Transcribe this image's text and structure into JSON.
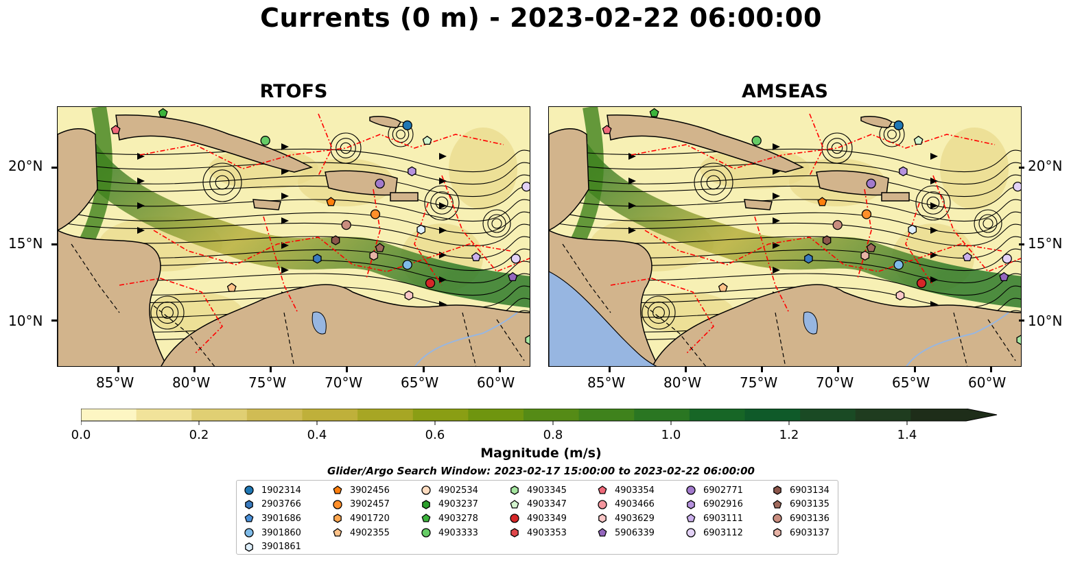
{
  "title": "Currents (0 m) - 2023-02-22 06:00:00",
  "panels": [
    {
      "name": "RTOFS"
    },
    {
      "name": "AMSEAS"
    }
  ],
  "map": {
    "lon_range": [
      -89,
      -58
    ],
    "lat_range": [
      7,
      24
    ],
    "lat_ticks": [
      "20°N",
      "15°N",
      "10°N"
    ],
    "lon_ticks": [
      "85°W",
      "80°W",
      "75°W",
      "70°W",
      "65°W",
      "60°W"
    ],
    "colors": {
      "land": "#d2b48c",
      "ocean_low": "#f7f0b4",
      "ocean_mid": "#b8b040",
      "ocean_high": "#2f7a2a",
      "lake": "#97b6e1",
      "eez": "#ff0000"
    }
  },
  "colorbar": {
    "label": "Magnitude (m/s)",
    "range": [
      0.0,
      1.5
    ],
    "extend": "max",
    "ticks": [
      "0.0",
      "0.2",
      "0.4",
      "0.6",
      "0.8",
      "1.0",
      "1.2",
      "1.4"
    ],
    "colors": [
      "#fdf6c3",
      "#f1e39a",
      "#e0cf73",
      "#d0bc54",
      "#bfb03a",
      "#a7a624",
      "#8a9e14",
      "#6f950f",
      "#558b16",
      "#3f821c",
      "#2a7622",
      "#176626",
      "#0f5a29",
      "#1a4a24",
      "#1f3c1f",
      "#1e2d19"
    ]
  },
  "search_window": "Glider/Argo Search Window: 2023-02-17 15:00:00 to 2023-02-22 06:00:00",
  "legend": [
    {
      "id": "1902314",
      "marker": "circle",
      "color": "#1f77b4"
    },
    {
      "id": "2903766",
      "marker": "hexagon",
      "color": "#3a7bbf"
    },
    {
      "id": "3901686",
      "marker": "pentagon",
      "color": "#4a90d9"
    },
    {
      "id": "3901860",
      "marker": "circle",
      "color": "#7fbbe8"
    },
    {
      "id": "3901861",
      "marker": "hexagon",
      "color": "#ddeefa"
    },
    {
      "id": "3902456",
      "marker": "pentagon",
      "color": "#ff7f0e"
    },
    {
      "id": "3902457",
      "marker": "circle",
      "color": "#ff8f2a"
    },
    {
      "id": "4901720",
      "marker": "hexagon",
      "color": "#ffa750"
    },
    {
      "id": "4902355",
      "marker": "pentagon",
      "color": "#ffc38a"
    },
    {
      "id": "4902534",
      "marker": "circle",
      "color": "#ffdcc0"
    },
    {
      "id": "4903237",
      "marker": "hexagon",
      "color": "#2ca02c"
    },
    {
      "id": "4903278",
      "marker": "pentagon",
      "color": "#3cb43c"
    },
    {
      "id": "4903333",
      "marker": "circle",
      "color": "#66cc66"
    },
    {
      "id": "4903345",
      "marker": "hexagon",
      "color": "#a5e6a0"
    },
    {
      "id": "4903347",
      "marker": "pentagon",
      "color": "#d4f5cf"
    },
    {
      "id": "4903349",
      "marker": "circle",
      "color": "#d62728"
    },
    {
      "id": "4903353",
      "marker": "hexagon",
      "color": "#e0474a"
    },
    {
      "id": "4903354",
      "marker": "pentagon",
      "color": "#f06a7a"
    },
    {
      "id": "4903466",
      "marker": "circle",
      "color": "#f4969e"
    },
    {
      "id": "4903629",
      "marker": "hexagon",
      "color": "#fbc8c8"
    },
    {
      "id": "5906339",
      "marker": "pentagon",
      "color": "#9467bd"
    },
    {
      "id": "6902771",
      "marker": "circle",
      "color": "#a27acc"
    },
    {
      "id": "6902916",
      "marker": "hexagon",
      "color": "#b692de"
    },
    {
      "id": "6903111",
      "marker": "pentagon",
      "color": "#cbb0ec"
    },
    {
      "id": "6903112",
      "marker": "circle",
      "color": "#e3d2f6"
    },
    {
      "id": "6903134",
      "marker": "hexagon",
      "color": "#8c564b"
    },
    {
      "id": "6903135",
      "marker": "pentagon",
      "color": "#a06a5c"
    },
    {
      "id": "6903136",
      "marker": "circle",
      "color": "#c98d7f"
    },
    {
      "id": "6903137",
      "marker": "hexagon",
      "color": "#e7b3a6"
    }
  ],
  "floats": [
    {
      "id": "4903278",
      "lon": -82.1,
      "lat": 23.6
    },
    {
      "id": "4903354",
      "lon": -85.2,
      "lat": 22.5
    },
    {
      "id": "4903333",
      "lon": -75.4,
      "lat": 21.8
    },
    {
      "id": "1902314",
      "lon": -66.1,
      "lat": 22.8
    },
    {
      "id": "4903347",
      "lon": -64.8,
      "lat": 21.8
    },
    {
      "id": "6902916",
      "lon": -65.8,
      "lat": 19.8
    },
    {
      "id": "6902771",
      "lon": -67.9,
      "lat": 19.0
    },
    {
      "id": "6903112",
      "lon": -58.3,
      "lat": 18.8
    },
    {
      "id": "3902456",
      "lon": -71.1,
      "lat": 17.8
    },
    {
      "id": "3902457",
      "lon": -68.2,
      "lat": 17.0
    },
    {
      "id": "6903136",
      "lon": -70.1,
      "lat": 16.3
    },
    {
      "id": "3901861",
      "lon": -65.2,
      "lat": 16.0
    },
    {
      "id": "6903134",
      "lon": -70.8,
      "lat": 15.3
    },
    {
      "id": "6903135",
      "lon": -67.9,
      "lat": 14.8
    },
    {
      "id": "6903137",
      "lon": -68.3,
      "lat": 14.3
    },
    {
      "id": "2903766",
      "lon": -72.0,
      "lat": 14.1
    },
    {
      "id": "6903111",
      "lon": -61.6,
      "lat": 14.2
    },
    {
      "id": "6903112",
      "lon": -59.0,
      "lat": 14.1
    },
    {
      "id": "3901860",
      "lon": -66.1,
      "lat": 13.7
    },
    {
      "id": "4902355",
      "lon": -77.6,
      "lat": 12.2
    },
    {
      "id": "4903349",
      "lon": -64.6,
      "lat": 12.5
    },
    {
      "id": "4903629",
      "lon": -66.0,
      "lat": 11.7
    },
    {
      "id": "5906339",
      "lon": -59.2,
      "lat": 12.9
    },
    {
      "id": "4903345",
      "lon": -58.1,
      "lat": 8.8
    }
  ]
}
